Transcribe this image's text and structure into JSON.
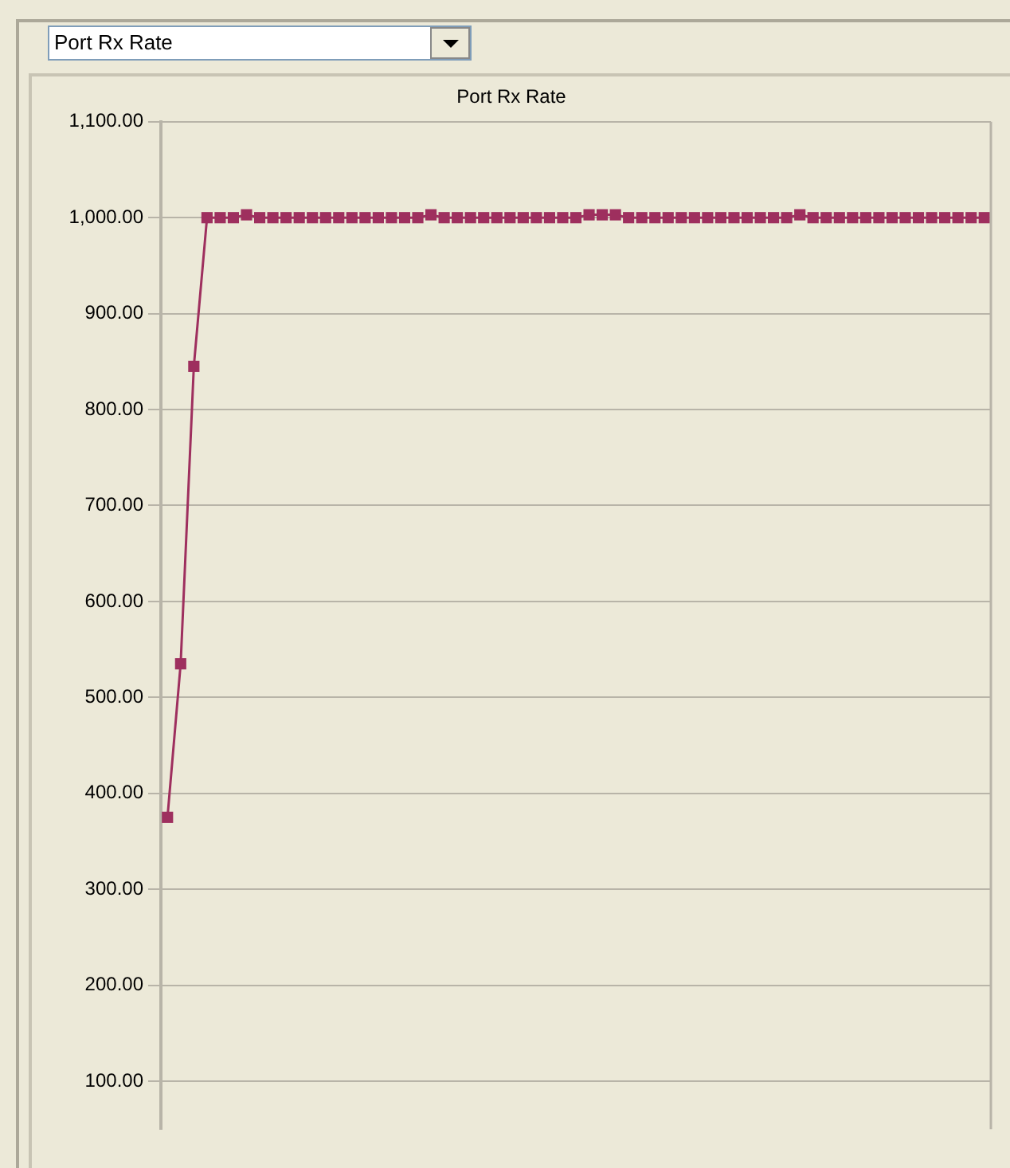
{
  "chart_data": {
    "type": "line",
    "title": "Port Rx Rate",
    "annotations": [
      "Port Rx Rate"
    ],
    "categories": [
      null,
      null,
      null,
      null,
      null,
      null,
      null,
      null,
      null,
      null,
      null,
      null,
      null,
      null,
      null,
      null,
      null,
      null,
      null,
      null,
      null,
      null,
      null,
      null,
      null,
      null,
      null,
      null,
      null,
      null,
      null,
      null,
      null,
      null,
      null,
      null,
      null,
      null,
      null,
      null,
      null,
      null,
      null,
      null,
      null,
      null,
      null,
      null,
      null,
      null,
      null,
      null,
      null,
      null,
      null,
      null,
      null,
      null,
      null,
      null,
      null,
      null,
      null
    ],
    "series": [
      {
        "color": "#9e2f5e",
        "values": [
          375,
          535,
          845,
          1000,
          1000,
          1000,
          1003,
          1000,
          1000,
          1000,
          1000,
          1000,
          1000,
          1000,
          1000,
          1000,
          1000,
          1000,
          1000,
          1000,
          1003,
          1000,
          1000,
          1000,
          1000,
          1000,
          1000,
          1000,
          1000,
          1000,
          1000,
          1000,
          1003,
          1003,
          1003,
          1000,
          1000,
          1000,
          1000,
          1000,
          1000,
          1000,
          1000,
          1000,
          1000,
          1000,
          1000,
          1000,
          1003,
          1000,
          1000,
          1000,
          1000,
          1000,
          1000,
          1000,
          1000,
          1000,
          1000,
          1000,
          1000,
          1000,
          1000
        ]
      }
    ],
    "ylim": [
      50,
      1100
    ],
    "yticks": [
      {
        "value": 100,
        "label": "100.00"
      },
      {
        "value": 200,
        "label": "200.00"
      },
      {
        "value": 300,
        "label": "300.00"
      },
      {
        "value": 400,
        "label": "400.00"
      },
      {
        "value": 500,
        "label": "500.00"
      },
      {
        "value": 600,
        "label": "600.00"
      },
      {
        "value": 700,
        "label": "700.00"
      },
      {
        "value": 800,
        "label": "800.00"
      },
      {
        "value": 900,
        "label": "900.00"
      },
      {
        "value": 1000,
        "label": "1,000.00"
      },
      {
        "value": 1100,
        "label": "1,100.00"
      }
    ],
    "grid": "y",
    "legend": false,
    "marker": "square",
    "line_style": "solid"
  }
}
